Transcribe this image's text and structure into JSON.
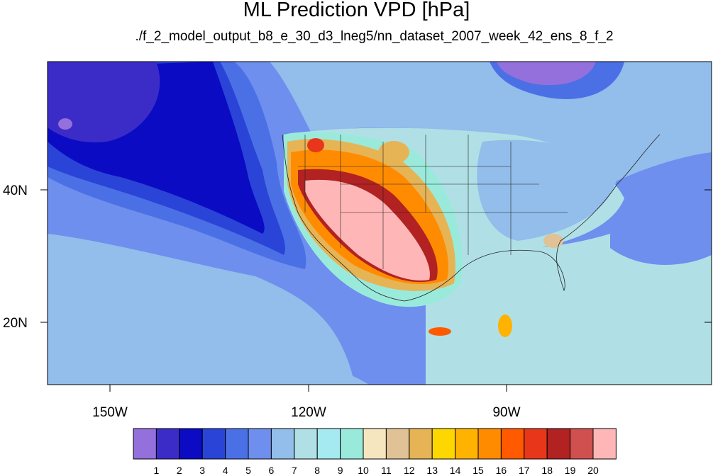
{
  "title": "ML Prediction VPD [hPa]",
  "subtitle": "./f_2_model_output_b8_e_30_d3_lneg5/nn_dataset_2007_week_42_ens_8_f_2",
  "axes": {
    "x_ticks": [
      {
        "label": "150W",
        "lon": -150
      },
      {
        "label": "120W",
        "lon": -120
      },
      {
        "label": "90W",
        "lon": -90
      }
    ],
    "y_ticks": [
      {
        "label": "40N",
        "lat": 40
      },
      {
        "label": "20N",
        "lat": 20
      }
    ],
    "lon_range": [
      -159.5,
      -60.5
    ],
    "lat_range": [
      10.5,
      59.5
    ]
  },
  "colorbar": {
    "labels": [
      "1",
      "2",
      "3",
      "4",
      "5",
      "6",
      "7",
      "8",
      "9",
      "10",
      "11",
      "12",
      "13",
      "14",
      "15",
      "16",
      "17",
      "18",
      "19",
      "20"
    ],
    "colors": [
      "#9370db",
      "#3b2cc8",
      "#0b0bc4",
      "#2a44d8",
      "#4b70e6",
      "#6e8fee",
      "#93bdea",
      "#b0e0e6",
      "#a4eaf0",
      "#9aeadc",
      "#f5e6c0",
      "#e0c296",
      "#e6b455",
      "#ffd700",
      "#ffb300",
      "#ff8c00",
      "#ff5a00",
      "#e8361a",
      "#b22222",
      "#d05050",
      "#ffb6b6"
    ]
  }
}
